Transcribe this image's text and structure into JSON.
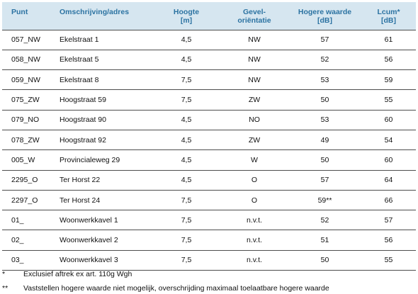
{
  "table": {
    "headers": [
      {
        "line1": "Punt",
        "line2": ""
      },
      {
        "line1": "Omschrijving/adres",
        "line2": ""
      },
      {
        "line1": "Hoogte",
        "line2": "[m]"
      },
      {
        "line1": "Gevel-",
        "line2": "oriëntatie"
      },
      {
        "line1": "Hogere waarde",
        "line2": "[dB]"
      },
      {
        "line1": "Lcum*",
        "line2": "[dB]"
      }
    ],
    "rows": [
      [
        "057_NW",
        "Ekelstraat 1",
        "4,5",
        "NW",
        "57",
        "61"
      ],
      [
        "058_NW",
        "Ekelstraat 5",
        "4,5",
        "NW",
        "52",
        "56"
      ],
      [
        "059_NW",
        "Ekelstraat 8",
        "7,5",
        "NW",
        "53",
        "59"
      ],
      [
        "075_ZW",
        "Hoogstraat 59",
        "7,5",
        "ZW",
        "50",
        "55"
      ],
      [
        "079_NO",
        "Hoogstraat 90",
        "4,5",
        "NO",
        "53",
        "60"
      ],
      [
        "078_ZW",
        "Hoogstraat 92",
        "4,5",
        "ZW",
        "49",
        "54"
      ],
      [
        "005_W",
        "Provincialeweg 29",
        "4,5",
        "W",
        "50",
        "60"
      ],
      [
        "2295_O",
        "Ter Horst 22",
        "4,5",
        "O",
        "57",
        "64"
      ],
      [
        "2297_O",
        "Ter Horst 24",
        "7,5",
        "O",
        "59**",
        "66"
      ],
      [
        "01_",
        "Woonwerkkavel 1",
        "7,5",
        "n.v.t.",
        "52",
        "57"
      ],
      [
        "02_",
        "Woonwerkkavel 2",
        "7,5",
        "n.v.t.",
        "51",
        "56"
      ],
      [
        "03_",
        "Woonwerkkavel 3",
        "7,5",
        "n.v.t.",
        "50",
        "55"
      ]
    ]
  },
  "footnotes": [
    {
      "mark": "*",
      "text": "Exclusief aftrek ex art. 110g Wgh"
    },
    {
      "mark": "**",
      "text": "Vaststellen hogere waarde niet mogelijk, overschrijding maximaal toelaatbare hogere waarde"
    }
  ],
  "colors": {
    "header_bg": "#d6e6f0",
    "header_text": "#2c73a2",
    "rule": "#4d4d4d"
  }
}
